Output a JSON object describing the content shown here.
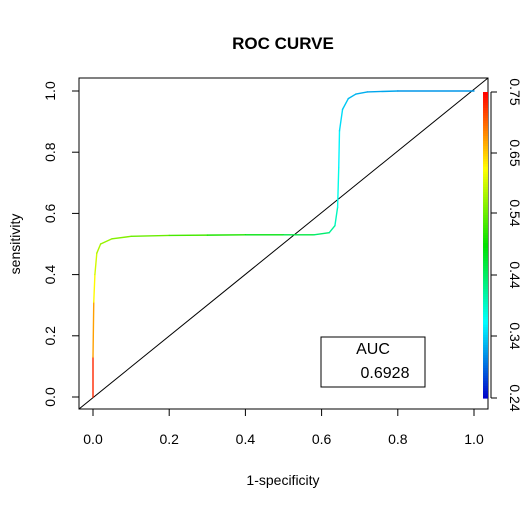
{
  "chart_data": {
    "type": "line",
    "title": "ROC CURVE",
    "xlabel": "1-specificity",
    "ylabel": "sensitivity",
    "xlim": [
      0,
      1
    ],
    "ylim": [
      0,
      1
    ],
    "x_ticks": [
      "0.0",
      "0.2",
      "0.4",
      "0.6",
      "0.8",
      "1.0"
    ],
    "y_ticks": [
      "0.0",
      "0.2",
      "0.4",
      "0.6",
      "0.8",
      "1.0"
    ],
    "grid": false,
    "series": [
      {
        "style": "roc-colored-by-threshold",
        "points": [
          {
            "x": 0.0,
            "y": 0.0,
            "t": 0.76
          },
          {
            "x": 0.0,
            "y": 0.13,
            "t": 0.7
          },
          {
            "x": 0.002,
            "y": 0.31,
            "t": 0.64
          },
          {
            "x": 0.005,
            "y": 0.4,
            "t": 0.61
          },
          {
            "x": 0.01,
            "y": 0.47,
            "t": 0.59
          },
          {
            "x": 0.02,
            "y": 0.5,
            "t": 0.575
          },
          {
            "x": 0.05,
            "y": 0.517,
            "t": 0.565
          },
          {
            "x": 0.1,
            "y": 0.525,
            "t": 0.555
          },
          {
            "x": 0.2,
            "y": 0.528,
            "t": 0.54
          },
          {
            "x": 0.3,
            "y": 0.529,
            "t": 0.52
          },
          {
            "x": 0.4,
            "y": 0.53,
            "t": 0.5
          },
          {
            "x": 0.5,
            "y": 0.53,
            "t": 0.475
          },
          {
            "x": 0.58,
            "y": 0.53,
            "t": 0.45
          },
          {
            "x": 0.62,
            "y": 0.537,
            "t": 0.43
          },
          {
            "x": 0.635,
            "y": 0.56,
            "t": 0.41
          },
          {
            "x": 0.642,
            "y": 0.62,
            "t": 0.39
          },
          {
            "x": 0.645,
            "y": 0.75,
            "t": 0.37
          },
          {
            "x": 0.647,
            "y": 0.87,
            "t": 0.355
          },
          {
            "x": 0.655,
            "y": 0.94,
            "t": 0.345
          },
          {
            "x": 0.67,
            "y": 0.975,
            "t": 0.335
          },
          {
            "x": 0.69,
            "y": 0.99,
            "t": 0.33
          },
          {
            "x": 0.72,
            "y": 0.997,
            "t": 0.325
          },
          {
            "x": 0.8,
            "y": 1.0,
            "t": 0.32
          },
          {
            "x": 1.0,
            "y": 1.0,
            "t": 0.31
          }
        ]
      },
      {
        "style": "diagonal-reference",
        "points": [
          {
            "x": 0,
            "y": 0
          },
          {
            "x": 1,
            "y": 1
          }
        ]
      }
    ],
    "colorbar": {
      "ticks": [
        "0.24",
        "0.34",
        "0.44",
        "0.54",
        "0.65",
        "0.75"
      ],
      "range": [
        0.24,
        0.75
      ],
      "colors": [
        "#0000c8",
        "#00ffff",
        "#00e000",
        "#ffff00",
        "#ff0000"
      ]
    },
    "annotation": {
      "label": "AUC",
      "value": "0.6928"
    },
    "colors": {
      "axis": "#000000",
      "diagonal": "#000000"
    }
  }
}
